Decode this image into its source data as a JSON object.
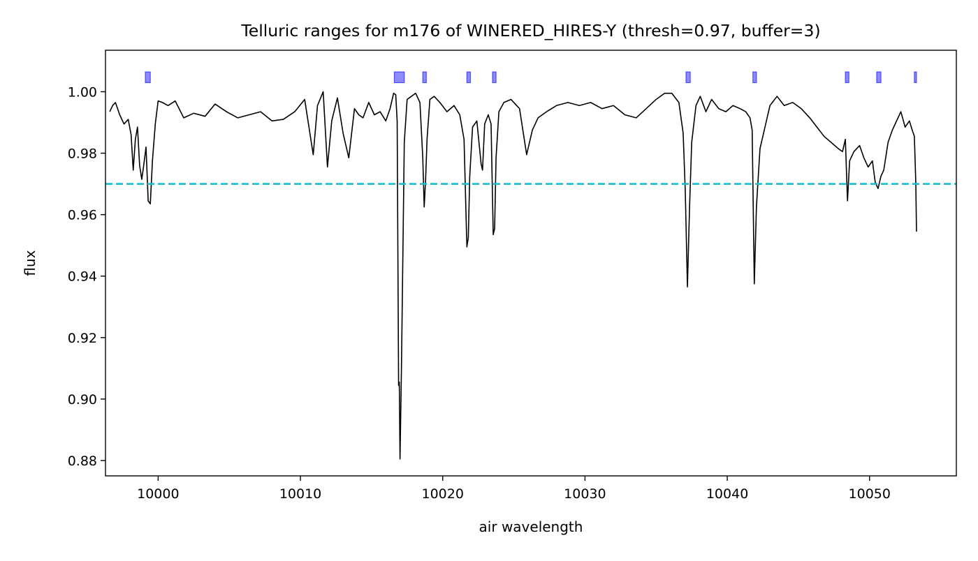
{
  "chart_data": {
    "type": "line",
    "title": "Telluric ranges for m176 of WINERED_HIRES-Y (thresh=0.97, buffer=3)",
    "xlabel": "air wavelength",
    "ylabel": "flux",
    "xlim": [
      9996.3,
      10056.1
    ],
    "ylim": [
      0.875,
      1.0135
    ],
    "xticks": [
      10000,
      10010,
      10020,
      10030,
      10040,
      10050
    ],
    "xtick_labels": [
      "10000",
      "10010",
      "10020",
      "10030",
      "10040",
      "10050"
    ],
    "yticks": [
      0.88,
      0.9,
      0.92,
      0.94,
      0.96,
      0.98,
      1.0
    ],
    "ytick_labels": [
      "0.88",
      "0.90",
      "0.92",
      "0.94",
      "0.96",
      "0.98",
      "1.00"
    ],
    "threshold": {
      "value": 0.97,
      "color": "#17becf",
      "style": "dashed"
    },
    "telluric_ranges": {
      "color": "#0000ff",
      "y_center": 1.0047,
      "height": 0.0035,
      "ranges": [
        [
          9999.1,
          9999.45
        ],
        [
          10016.6,
          10017.3
        ],
        [
          10018.6,
          10018.85
        ],
        [
          10021.7,
          10021.95
        ],
        [
          10023.5,
          10023.75
        ],
        [
          10037.1,
          10037.4
        ],
        [
          10041.8,
          10042.05
        ],
        [
          10048.3,
          10048.55
        ],
        [
          10050.5,
          10050.8
        ],
        [
          10053.15,
          10053.3
        ]
      ]
    },
    "series": [
      {
        "color": "#000000",
        "x": [
          9996.6,
          9996.8,
          9997.0,
          9997.3,
          9997.6,
          9997.9,
          9998.1,
          9998.25,
          9998.4,
          9998.55,
          9998.7,
          9998.85,
          9999.0,
          9999.15,
          9999.3,
          9999.45,
          9999.6,
          9999.8,
          10000.0,
          10000.3,
          10000.7,
          10001.2,
          10001.8,
          10002.5,
          10003.3,
          10004.0,
          10004.8,
          10005.6,
          10006.4,
          10007.2,
          10008.0,
          10008.8,
          10009.6,
          10010.3,
          10010.6,
          10010.9,
          10011.2,
          10011.6,
          10011.9,
          10012.2,
          10012.6,
          10013.0,
          10013.4,
          10013.8,
          10014.1,
          10014.4,
          10014.8,
          10015.2,
          10015.6,
          10016.0,
          10016.3,
          10016.55,
          10016.7,
          10016.8,
          10016.9,
          10016.95,
          10017.0,
          10017.1,
          10017.3,
          10017.5,
          10017.8,
          10018.1,
          10018.4,
          10018.6,
          10018.7,
          10018.8,
          10018.9,
          10019.1,
          10019.4,
          10019.8,
          10020.3,
          10020.8,
          10021.2,
          10021.5,
          10021.7,
          10021.8,
          10021.9,
          10022.1,
          10022.4,
          10022.7,
          10022.8,
          10022.95,
          10023.2,
          10023.4,
          10023.55,
          10023.65,
          10023.75,
          10023.95,
          10024.3,
          10024.8,
          10025.4,
          10025.9,
          10026.3,
          10026.7,
          10027.3,
          10028.0,
          10028.8,
          10029.6,
          10030.4,
          10031.2,
          10032.0,
          10032.8,
          10033.6,
          10034.3,
          10035.0,
          10035.6,
          10036.1,
          10036.6,
          10036.9,
          10037.05,
          10037.2,
          10037.35,
          10037.5,
          10037.8,
          10038.1,
          10038.5,
          10038.9,
          10039.4,
          10039.9,
          10040.4,
          10040.9,
          10041.3,
          10041.6,
          10041.75,
          10041.9,
          10042.05,
          10042.3,
          10042.6,
          10043.0,
          10043.5,
          10044.0,
          10044.6,
          10045.2,
          10045.8,
          10046.3,
          10046.8,
          10047.3,
          10047.8,
          10048.1,
          10048.3,
          10048.45,
          10048.6,
          10048.9,
          10049.3,
          10049.6,
          10049.9,
          10050.2,
          10050.4,
          10050.6,
          10050.8,
          10051.0,
          10051.3,
          10051.6,
          10051.9,
          10052.2,
          10052.5,
          10052.8,
          10053.0,
          10053.15,
          10053.25,
          10053.3
        ],
        "y": [
          0.9935,
          0.9955,
          0.9965,
          0.9925,
          0.9895,
          0.991,
          0.986,
          0.9745,
          0.9845,
          0.9885,
          0.976,
          0.9715,
          0.9765,
          0.982,
          0.9645,
          0.9635,
          0.9775,
          0.9895,
          0.997,
          0.9965,
          0.9955,
          0.997,
          0.9915,
          0.993,
          0.992,
          0.996,
          0.9935,
          0.9915,
          0.9925,
          0.9935,
          0.9905,
          0.991,
          0.9935,
          0.9975,
          0.9885,
          0.9795,
          0.9955,
          1.0,
          0.9755,
          0.9905,
          0.998,
          0.9865,
          0.9785,
          0.9945,
          0.9925,
          0.9915,
          0.9965,
          0.9925,
          0.9935,
          0.9905,
          0.9945,
          0.9995,
          0.999,
          0.9905,
          0.9045,
          0.9055,
          0.8805,
          0.9095,
          0.9835,
          0.9975,
          0.9985,
          0.9995,
          0.9965,
          0.9785,
          0.9625,
          0.9715,
          0.9845,
          0.9975,
          0.9985,
          0.9965,
          0.9935,
          0.9955,
          0.9925,
          0.9845,
          0.9495,
          0.9525,
          0.9725,
          0.9885,
          0.9905,
          0.9765,
          0.9745,
          0.9895,
          0.9925,
          0.9895,
          0.9535,
          0.9555,
          0.9785,
          0.9935,
          0.9965,
          0.9975,
          0.9945,
          0.9795,
          0.9875,
          0.9915,
          0.9935,
          0.9955,
          0.9965,
          0.9955,
          0.9965,
          0.9945,
          0.9955,
          0.9925,
          0.9915,
          0.9945,
          0.9975,
          0.9995,
          0.9995,
          0.9965,
          0.9865,
          0.9675,
          0.9365,
          0.9625,
          0.9835,
          0.9955,
          0.9985,
          0.9935,
          0.9975,
          0.9945,
          0.9935,
          0.9955,
          0.9945,
          0.9935,
          0.9915,
          0.9875,
          0.9375,
          0.9625,
          0.9815,
          0.9875,
          0.9955,
          0.9985,
          0.9955,
          0.9965,
          0.9945,
          0.9915,
          0.9885,
          0.9855,
          0.9835,
          0.9815,
          0.9805,
          0.9845,
          0.9645,
          0.9775,
          0.9805,
          0.9825,
          0.9785,
          0.9755,
          0.9775,
          0.9705,
          0.9685,
          0.9725,
          0.9745,
          0.9835,
          0.9875,
          0.9905,
          0.9935,
          0.9885,
          0.9905,
          0.9875,
          0.9855,
          0.9705,
          0.9545
        ]
      }
    ]
  }
}
